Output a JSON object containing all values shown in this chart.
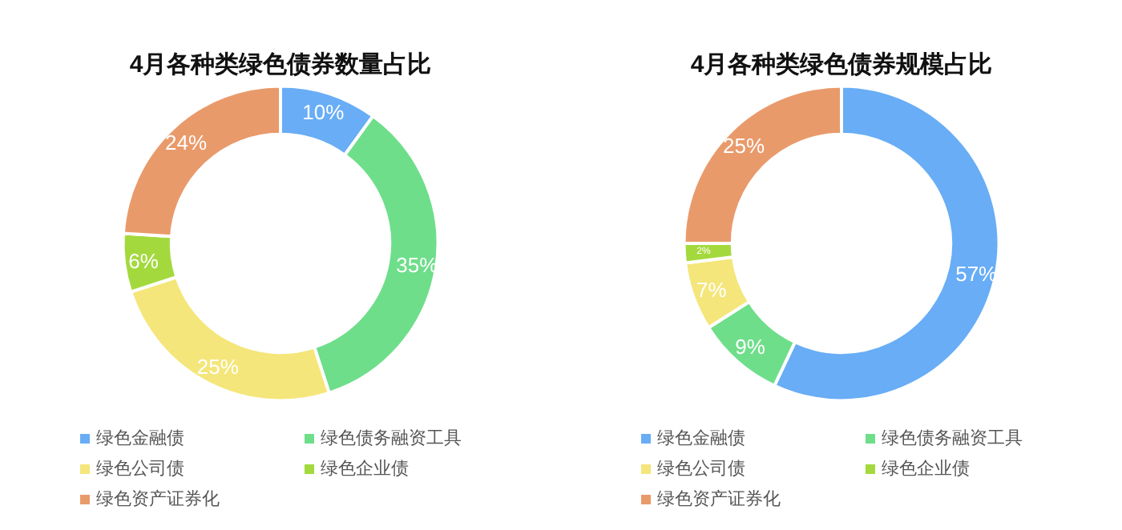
{
  "chart_data": [
    {
      "type": "donut",
      "title": "4月各种类绿色债券数量占比",
      "categories": [
        "绿色金融债",
        "绿色债务融资工具",
        "绿色公司债",
        "绿色企业债",
        "绿色资产证券化"
      ],
      "values": [
        10,
        35,
        25,
        6,
        24
      ],
      "value_labels": [
        "10%",
        "35%",
        "25%",
        "6%",
        "24%"
      ],
      "colors": [
        "#68adf5",
        "#6ede8a",
        "#f4e67a",
        "#a3d93d",
        "#e99a6b"
      ],
      "legend": "bottom"
    },
    {
      "type": "donut",
      "title": "4月各种类绿色债券规模占比",
      "categories": [
        "绿色金融债",
        "绿色债务融资工具",
        "绿色公司债",
        "绿色企业债",
        "绿色资产证券化"
      ],
      "values": [
        57,
        9,
        7,
        2,
        25
      ],
      "value_labels": [
        "57%",
        "9%",
        "7%",
        "2%",
        "25%"
      ],
      "colors": [
        "#68adf5",
        "#6ede8a",
        "#f4e67a",
        "#a3d93d",
        "#e99a6b"
      ],
      "legend": "bottom"
    }
  ]
}
